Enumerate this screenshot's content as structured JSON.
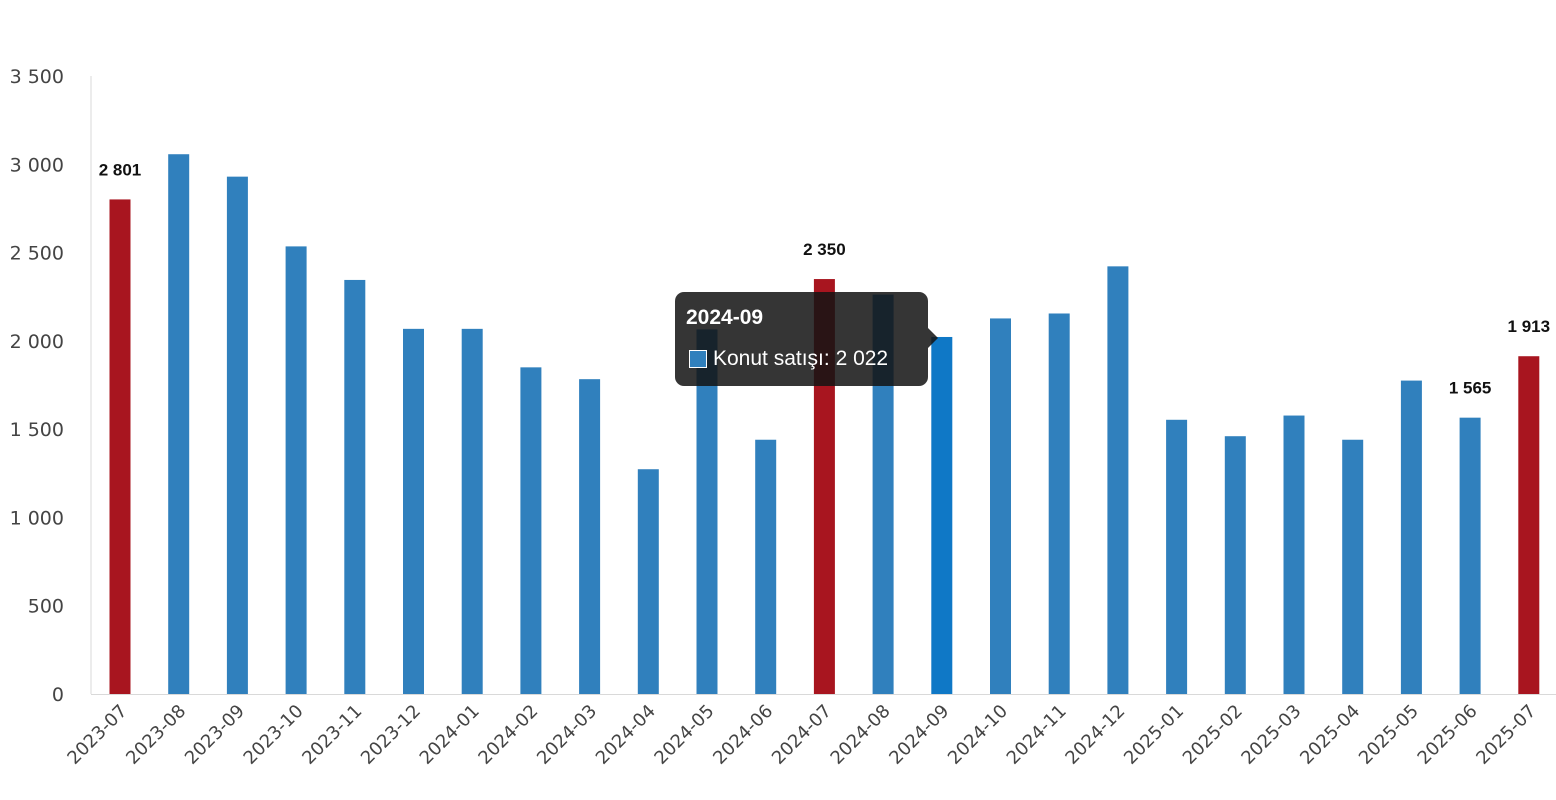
{
  "chart_data": {
    "type": "bar",
    "title": "",
    "xlabel": "",
    "ylabel": "",
    "ylim": [
      0,
      3500
    ],
    "yticks": [
      0,
      500,
      1000,
      1500,
      2000,
      2500,
      3000,
      3500
    ],
    "ytick_labels": [
      "0",
      "500",
      "1 000",
      "1 500",
      "2 000",
      "2 500",
      "3 000",
      "3 500"
    ],
    "grid": false,
    "categories": [
      "2023-07",
      "2023-08",
      "2023-09",
      "2023-10",
      "2023-11",
      "2023-12",
      "2024-01",
      "2024-02",
      "2024-03",
      "2024-04",
      "2024-05",
      "2024-06",
      "2024-07",
      "2024-08",
      "2024-09",
      "2024-10",
      "2024-11",
      "2024-12",
      "2025-01",
      "2025-02",
      "2025-03",
      "2025-04",
      "2025-05",
      "2025-06",
      "2025-07"
    ],
    "series": [
      {
        "name": "Konut satışı",
        "values": [
          2801,
          3057,
          2930,
          2535,
          2345,
          2068,
          2068,
          1850,
          1783,
          1273,
          2065,
          1440,
          2350,
          2262,
          2022,
          2127,
          2155,
          2422,
          1553,
          1460,
          1577,
          1440,
          1775,
          1565,
          1913
        ]
      }
    ],
    "colors": {
      "default": "#3080bd",
      "highlight": "#a8151f",
      "hover": "#0f78c6"
    },
    "highlighted_indices": [
      0,
      12,
      24
    ],
    "data_labels": [
      {
        "index": 0,
        "text": "2 801"
      },
      {
        "index": 12,
        "text": "2 350"
      },
      {
        "index": 23,
        "text": "1 565"
      },
      {
        "index": 24,
        "text": "1 913"
      }
    ],
    "tooltip": {
      "index": 14,
      "title": "2024-09",
      "series_name": "Konut satışı",
      "value_text": "2 022",
      "row_text": "Konut satışı: 2 022"
    }
  }
}
